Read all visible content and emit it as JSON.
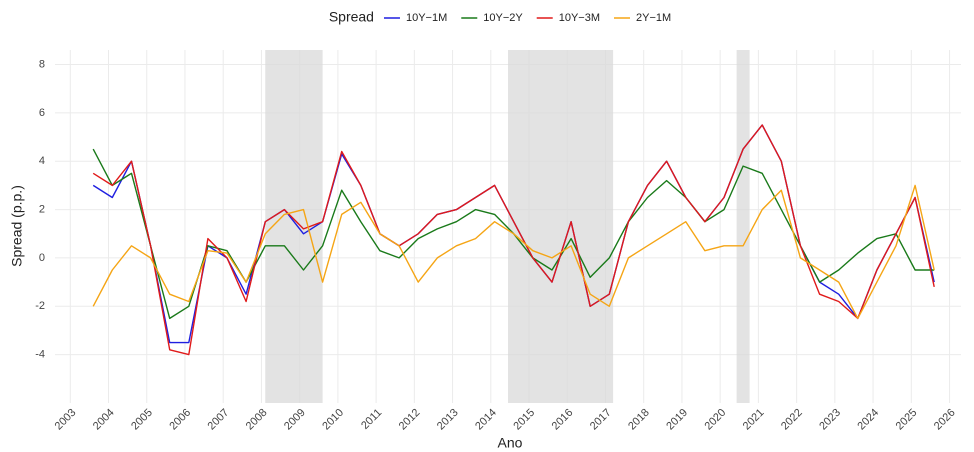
{
  "chart_data": {
    "type": "line",
    "x_label": "Ano",
    "y_label": "Spread (p.p.)",
    "legend_title": "Spread",
    "legend_position": "top",
    "grid": true,
    "x": [
      2003.6,
      2004.1,
      2004.6,
      2005.1,
      2005.6,
      2006.1,
      2006.6,
      2007.1,
      2007.6,
      2008.1,
      2008.6,
      2009.1,
      2009.6,
      2010.1,
      2010.6,
      2011.1,
      2011.6,
      2012.1,
      2012.6,
      2013.1,
      2013.6,
      2014.1,
      2014.6,
      2015.1,
      2015.6,
      2016.1,
      2016.6,
      2017.1,
      2017.6,
      2018.1,
      2018.6,
      2019.1,
      2019.6,
      2020.1,
      2020.6,
      2021.1,
      2021.6,
      2022.1,
      2022.6,
      2023.1,
      2023.6,
      2024.1,
      2024.6,
      2025.1,
      2025.6
    ],
    "series": [
      {
        "name": "10Y−1M",
        "color": "#1f1fe0",
        "values": [
          3,
          2.5,
          4,
          0.5,
          -3.5,
          -3.5,
          0.5,
          0,
          -1.5,
          1.5,
          2,
          1,
          1.5,
          4.3,
          3,
          1,
          0.5,
          1,
          1.8,
          2,
          2.5,
          3,
          1.5,
          0,
          -1,
          1.5,
          -2,
          -1.5,
          1.5,
          3,
          4,
          2.5,
          1.5,
          2.5,
          4.5,
          5.5,
          4,
          0.5,
          -1,
          -1.5,
          -2.5,
          -0.5,
          1,
          2.5,
          -1
        ]
      },
      {
        "name": "10Y−2Y",
        "color": "#1a7a1a",
        "values": [
          4.5,
          3,
          3.5,
          0.5,
          -2.5,
          -2,
          0.5,
          0.3,
          -1,
          0.5,
          0.5,
          -0.5,
          0.5,
          2.8,
          1.5,
          0.3,
          0,
          0.8,
          1.2,
          1.5,
          2,
          1.8,
          1,
          0,
          -0.5,
          0.8,
          -0.8,
          0,
          1.5,
          2.5,
          3.2,
          2.5,
          1.5,
          2,
          3.8,
          3.5,
          2,
          0.5,
          -1,
          -0.5,
          0.2,
          0.8,
          1,
          -0.5,
          -0.5
        ]
      },
      {
        "name": "10Y−3M",
        "color": "#e01a1a",
        "values": [
          3.5,
          3,
          4,
          0.5,
          -3.8,
          -4,
          0.8,
          0,
          -1.8,
          1.5,
          2,
          1.2,
          1.5,
          4.4,
          3,
          1,
          0.5,
          1,
          1.8,
          2,
          2.5,
          3,
          1.5,
          0,
          -1,
          1.5,
          -2,
          -1.5,
          1.5,
          3,
          4,
          2.5,
          1.5,
          2.5,
          4.5,
          5.5,
          4,
          0.5,
          -1.5,
          -1.8,
          -2.5,
          -0.5,
          1,
          2.5,
          -1.2
        ]
      },
      {
        "name": "2Y−1M",
        "color": "#f5a515",
        "values": [
          -2,
          -0.5,
          0.5,
          0,
          -1.5,
          -1.8,
          0.3,
          0.2,
          -1,
          1,
          1.8,
          2,
          -1,
          1.8,
          2.3,
          1,
          0.5,
          -1,
          0,
          0.5,
          0.8,
          1.5,
          1,
          0.3,
          0,
          0.5,
          -1.5,
          -2,
          0,
          0.5,
          1,
          1.5,
          0.3,
          0.5,
          0.5,
          2,
          2.8,
          0,
          -0.5,
          -1,
          -2.5,
          -1,
          0.5,
          3,
          -0.5
        ]
      }
    ],
    "shaded_periods": [
      [
        2008.1,
        2009.6
      ],
      [
        2014.45,
        2017.2
      ],
      [
        2020.43,
        2020.77
      ]
    ],
    "xlim": [
      2002.6,
      2026.3
    ],
    "xticks": [
      2003,
      2004,
      2005,
      2006,
      2007,
      2008,
      2009,
      2010,
      2011,
      2012,
      2013,
      2014,
      2015,
      2016,
      2017,
      2018,
      2019,
      2020,
      2021,
      2022,
      2023,
      2024,
      2025,
      2026
    ],
    "ylim": [
      -6,
      8.6
    ],
    "yticks": [
      -4,
      -2,
      0,
      2,
      4,
      6,
      8
    ]
  }
}
